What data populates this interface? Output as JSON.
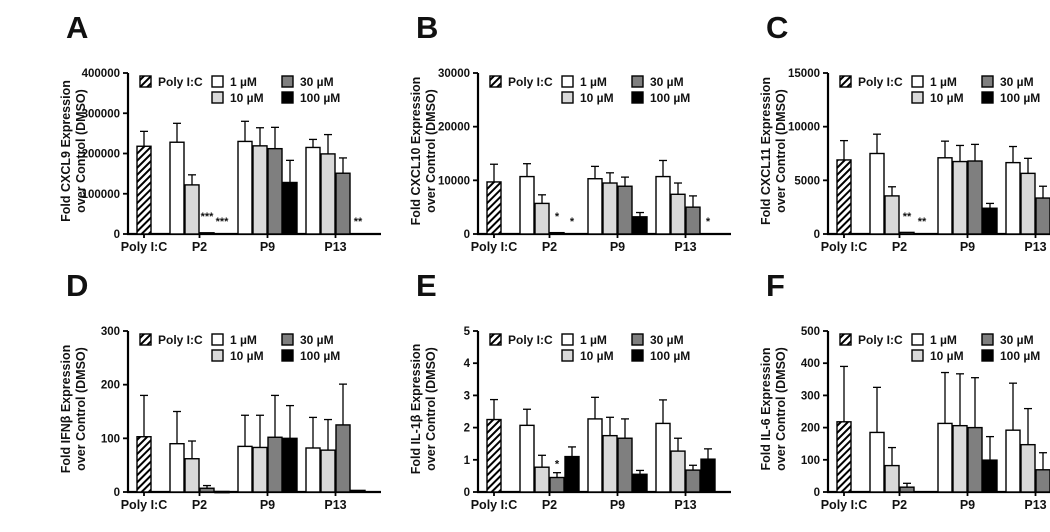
{
  "legend": {
    "entries": [
      {
        "label": "Poly I:C",
        "swatch": "hatch"
      },
      {
        "label": "1 µM",
        "swatch": "#ffffff"
      },
      {
        "label": "10 µM",
        "swatch": "#d9d9d9"
      },
      {
        "label": "30 µM",
        "swatch": "#7f7f7f"
      },
      {
        "label": "100 µM",
        "swatch": "#000000"
      }
    ]
  },
  "chart_data": [
    {
      "type": "bar",
      "panel": "A",
      "ylabel": "Fold CXCL9 Expression over Control (DMSO)",
      "ylabel_lines": [
        "Fold  CXCL9 Expression",
        "over Control (DMSO)"
      ],
      "ylim": [
        0,
        400000
      ],
      "yticks": [
        0,
        100000,
        200000,
        300000,
        400000
      ],
      "categories": [
        "Poly I:C",
        "P2",
        "P9",
        "P13"
      ],
      "groups": [
        {
          "name": "Poly I:C",
          "bars": [
            {
              "series": "Poly I:C",
              "value": 218000,
              "error": 37000,
              "sig": ""
            }
          ]
        },
        {
          "name": "P2",
          "bars": [
            {
              "series": "1 µM",
              "value": 228000,
              "error": 47000,
              "sig": ""
            },
            {
              "series": "10 µM",
              "value": 122000,
              "error": 25000,
              "sig": ""
            },
            {
              "series": "30 µM",
              "value": 3000,
              "error": 0,
              "sig": "***"
            },
            {
              "series": "100 µM",
              "value": 0,
              "error": 0,
              "sig": "***"
            }
          ]
        },
        {
          "name": "P9",
          "bars": [
            {
              "series": "1 µM",
              "value": 230000,
              "error": 50000,
              "sig": ""
            },
            {
              "series": "10 µM",
              "value": 219000,
              "error": 45000,
              "sig": ""
            },
            {
              "series": "30 µM",
              "value": 212000,
              "error": 53000,
              "sig": ""
            },
            {
              "series": "100 µM",
              "value": 128000,
              "error": 55000,
              "sig": ""
            }
          ]
        },
        {
          "name": "P13",
          "bars": [
            {
              "series": "1 µM",
              "value": 215000,
              "error": 20000,
              "sig": ""
            },
            {
              "series": "10 µM",
              "value": 199000,
              "error": 48000,
              "sig": ""
            },
            {
              "series": "30 µM",
              "value": 151000,
              "error": 38000,
              "sig": ""
            },
            {
              "series": "100 µM",
              "value": 0,
              "error": 0,
              "sig": "**"
            }
          ]
        }
      ]
    },
    {
      "type": "bar",
      "panel": "B",
      "ylabel": "Fold CXCL10 Expression over Control (DMSO)",
      "ylabel_lines": [
        "Fold  CXCL10 Expression",
        "over Control (DMSO)"
      ],
      "ylim": [
        0,
        30000
      ],
      "yticks": [
        0,
        10000,
        20000,
        30000
      ],
      "categories": [
        "Poly I:C",
        "P2",
        "P9",
        "P13"
      ],
      "groups": [
        {
          "name": "Poly I:C",
          "bars": [
            {
              "series": "Poly I:C",
              "value": 9700,
              "error": 3300,
              "sig": ""
            }
          ]
        },
        {
          "name": "P2",
          "bars": [
            {
              "series": "1 µM",
              "value": 10700,
              "error": 2400,
              "sig": ""
            },
            {
              "series": "10 µM",
              "value": 5700,
              "error": 1600,
              "sig": ""
            },
            {
              "series": "30 µM",
              "value": 250,
              "error": 0,
              "sig": "*"
            },
            {
              "series": "100 µM",
              "value": 0,
              "error": 0,
              "sig": "*"
            }
          ]
        },
        {
          "name": "P9",
          "bars": [
            {
              "series": "1 µM",
              "value": 10300,
              "error": 2300,
              "sig": ""
            },
            {
              "series": "10 µM",
              "value": 9500,
              "error": 1900,
              "sig": ""
            },
            {
              "series": "30 µM",
              "value": 8900,
              "error": 1700,
              "sig": ""
            },
            {
              "series": "100 µM",
              "value": 3200,
              "error": 800,
              "sig": ""
            }
          ]
        },
        {
          "name": "P13",
          "bars": [
            {
              "series": "1 µM",
              "value": 10700,
              "error": 3000,
              "sig": ""
            },
            {
              "series": "10 µM",
              "value": 7400,
              "error": 2100,
              "sig": ""
            },
            {
              "series": "30 µM",
              "value": 5000,
              "error": 2100,
              "sig": ""
            },
            {
              "series": "100 µM",
              "value": 0,
              "error": 0,
              "sig": "*"
            }
          ]
        }
      ]
    },
    {
      "type": "bar",
      "panel": "C",
      "ylabel": "Fold CXCL11 Expression over Control (DMSO)",
      "ylabel_lines": [
        "Fold CXCL11 Expression",
        "over Control (DMSO)"
      ],
      "ylim": [
        0,
        15000
      ],
      "yticks": [
        0,
        5000,
        10000,
        15000
      ],
      "categories": [
        "Poly I:C",
        "P2",
        "P9",
        "P13"
      ],
      "groups": [
        {
          "name": "Poly I:C",
          "bars": [
            {
              "series": "Poly I:C",
              "value": 6900,
              "error": 1800,
              "sig": ""
            }
          ]
        },
        {
          "name": "P2",
          "bars": [
            {
              "series": "1 µM",
              "value": 7500,
              "error": 1800,
              "sig": ""
            },
            {
              "series": "10 µM",
              "value": 3550,
              "error": 850,
              "sig": ""
            },
            {
              "series": "30 µM",
              "value": 150,
              "error": 0,
              "sig": "**"
            },
            {
              "series": "100 µM",
              "value": 0,
              "error": 0,
              "sig": "**"
            }
          ]
        },
        {
          "name": "P9",
          "bars": [
            {
              "series": "1 µM",
              "value": 7100,
              "error": 1550,
              "sig": ""
            },
            {
              "series": "10 µM",
              "value": 6750,
              "error": 1500,
              "sig": ""
            },
            {
              "series": "30 µM",
              "value": 6800,
              "error": 1550,
              "sig": ""
            },
            {
              "series": "100 µM",
              "value": 2400,
              "error": 450,
              "sig": ""
            }
          ]
        },
        {
          "name": "P13",
          "bars": [
            {
              "series": "1 µM",
              "value": 6650,
              "error": 1500,
              "sig": ""
            },
            {
              "series": "10 µM",
              "value": 5650,
              "error": 1400,
              "sig": ""
            },
            {
              "series": "30 µM",
              "value": 3350,
              "error": 1100,
              "sig": ""
            },
            {
              "series": "100 µM",
              "value": 0,
              "error": 0,
              "sig": "*"
            }
          ]
        }
      ]
    },
    {
      "type": "bar",
      "panel": "D",
      "ylabel": "Fold IFNβ Expression over Control (DMSO)",
      "ylabel_lines": [
        "Fold  IFNβ Expression",
        "over Control (DMSO)"
      ],
      "ylim": [
        0,
        300
      ],
      "yticks": [
        0,
        100,
        200,
        300
      ],
      "categories": [
        "Poly I:C",
        "P2",
        "P9",
        "P13"
      ],
      "groups": [
        {
          "name": "Poly I:C",
          "bars": [
            {
              "series": "Poly I:C",
              "value": 103,
              "error": 77,
              "sig": ""
            }
          ]
        },
        {
          "name": "P2",
          "bars": [
            {
              "series": "1 µM",
              "value": 90,
              "error": 60,
              "sig": ""
            },
            {
              "series": "10 µM",
              "value": 62,
              "error": 33,
              "sig": ""
            },
            {
              "series": "30 µM",
              "value": 7,
              "error": 5,
              "sig": ""
            },
            {
              "series": "100 µM",
              "value": 1,
              "error": 0,
              "sig": ""
            }
          ]
        },
        {
          "name": "P9",
          "bars": [
            {
              "series": "1 µM",
              "value": 85,
              "error": 58,
              "sig": ""
            },
            {
              "series": "10 µM",
              "value": 83,
              "error": 60,
              "sig": ""
            },
            {
              "series": "30 µM",
              "value": 102,
              "error": 78,
              "sig": ""
            },
            {
              "series": "100 µM",
              "value": 100,
              "error": 61,
              "sig": ""
            }
          ]
        },
        {
          "name": "P13",
          "bars": [
            {
              "series": "1 µM",
              "value": 82,
              "error": 57,
              "sig": ""
            },
            {
              "series": "10 µM",
              "value": 78,
              "error": 57,
              "sig": ""
            },
            {
              "series": "30 µM",
              "value": 125,
              "error": 76,
              "sig": ""
            },
            {
              "series": "100 µM",
              "value": 3,
              "error": 0,
              "sig": ""
            }
          ]
        }
      ]
    },
    {
      "type": "bar",
      "panel": "E",
      "ylabel": "Fold IL-1β Expression over Control (DMSO)",
      "ylabel_lines": [
        "Fold IL-1β Expression",
        "over Control (DMSO)"
      ],
      "ylim": [
        0,
        5
      ],
      "yticks": [
        0,
        1,
        2,
        3,
        4,
        5
      ],
      "categories": [
        "Poly I:C",
        "P2",
        "P9",
        "P13"
      ],
      "groups": [
        {
          "name": "Poly I:C",
          "bars": [
            {
              "series": "Poly I:C",
              "value": 2.25,
              "error": 0.62,
              "sig": ""
            }
          ]
        },
        {
          "name": "P2",
          "bars": [
            {
              "series": "1 µM",
              "value": 2.07,
              "error": 0.5,
              "sig": ""
            },
            {
              "series": "10 µM",
              "value": 0.77,
              "error": 0.37,
              "sig": ""
            },
            {
              "series": "30 µM",
              "value": 0.45,
              "error": 0.15,
              "sig": "*"
            },
            {
              "series": "100 µM",
              "value": 1.1,
              "error": 0.3,
              "sig": ""
            }
          ]
        },
        {
          "name": "P9",
          "bars": [
            {
              "series": "1 µM",
              "value": 2.27,
              "error": 0.67,
              "sig": ""
            },
            {
              "series": "10 µM",
              "value": 1.75,
              "error": 0.57,
              "sig": ""
            },
            {
              "series": "30 µM",
              "value": 1.67,
              "error": 0.6,
              "sig": ""
            },
            {
              "series": "100 µM",
              "value": 0.55,
              "error": 0.12,
              "sig": ""
            }
          ]
        },
        {
          "name": "P13",
          "bars": [
            {
              "series": "1 µM",
              "value": 2.13,
              "error": 0.73,
              "sig": ""
            },
            {
              "series": "10 µM",
              "value": 1.27,
              "error": 0.4,
              "sig": ""
            },
            {
              "series": "30 µM",
              "value": 0.68,
              "error": 0.15,
              "sig": ""
            },
            {
              "series": "100 µM",
              "value": 1.02,
              "error": 0.32,
              "sig": ""
            }
          ]
        }
      ]
    },
    {
      "type": "bar",
      "panel": "F",
      "ylabel": "Fold IL-6 Expression over Control (DMSO)",
      "ylabel_lines": [
        "Fold  IL-6 Expression",
        "over Control (DMSO)"
      ],
      "ylim": [
        0,
        500
      ],
      "yticks": [
        0,
        100,
        200,
        300,
        400,
        500
      ],
      "categories": [
        "Poly I:C",
        "P2",
        "P9",
        "P13"
      ],
      "groups": [
        {
          "name": "Poly I:C",
          "bars": [
            {
              "series": "Poly I:C",
              "value": 218,
              "error": 172,
              "sig": ""
            }
          ]
        },
        {
          "name": "P2",
          "bars": [
            {
              "series": "1 µM",
              "value": 185,
              "error": 140,
              "sig": ""
            },
            {
              "series": "10 µM",
              "value": 82,
              "error": 56,
              "sig": ""
            },
            {
              "series": "30 µM",
              "value": 15,
              "error": 12,
              "sig": ""
            },
            {
              "series": "100 µM",
              "value": 0,
              "error": 0,
              "sig": ""
            }
          ]
        },
        {
          "name": "P9",
          "bars": [
            {
              "series": "1 µM",
              "value": 213,
              "error": 158,
              "sig": ""
            },
            {
              "series": "10 µM",
              "value": 206,
              "error": 161,
              "sig": ""
            },
            {
              "series": "30 µM",
              "value": 200,
              "error": 155,
              "sig": ""
            },
            {
              "series": "100 µM",
              "value": 99,
              "error": 73,
              "sig": ""
            }
          ]
        },
        {
          "name": "P13",
          "bars": [
            {
              "series": "1 µM",
              "value": 192,
              "error": 146,
              "sig": ""
            },
            {
              "series": "10 µM",
              "value": 147,
              "error": 112,
              "sig": ""
            },
            {
              "series": "30 µM",
              "value": 69,
              "error": 53,
              "sig": ""
            },
            {
              "series": "100 µM",
              "value": 0,
              "error": 0,
              "sig": ""
            }
          ]
        }
      ]
    }
  ]
}
